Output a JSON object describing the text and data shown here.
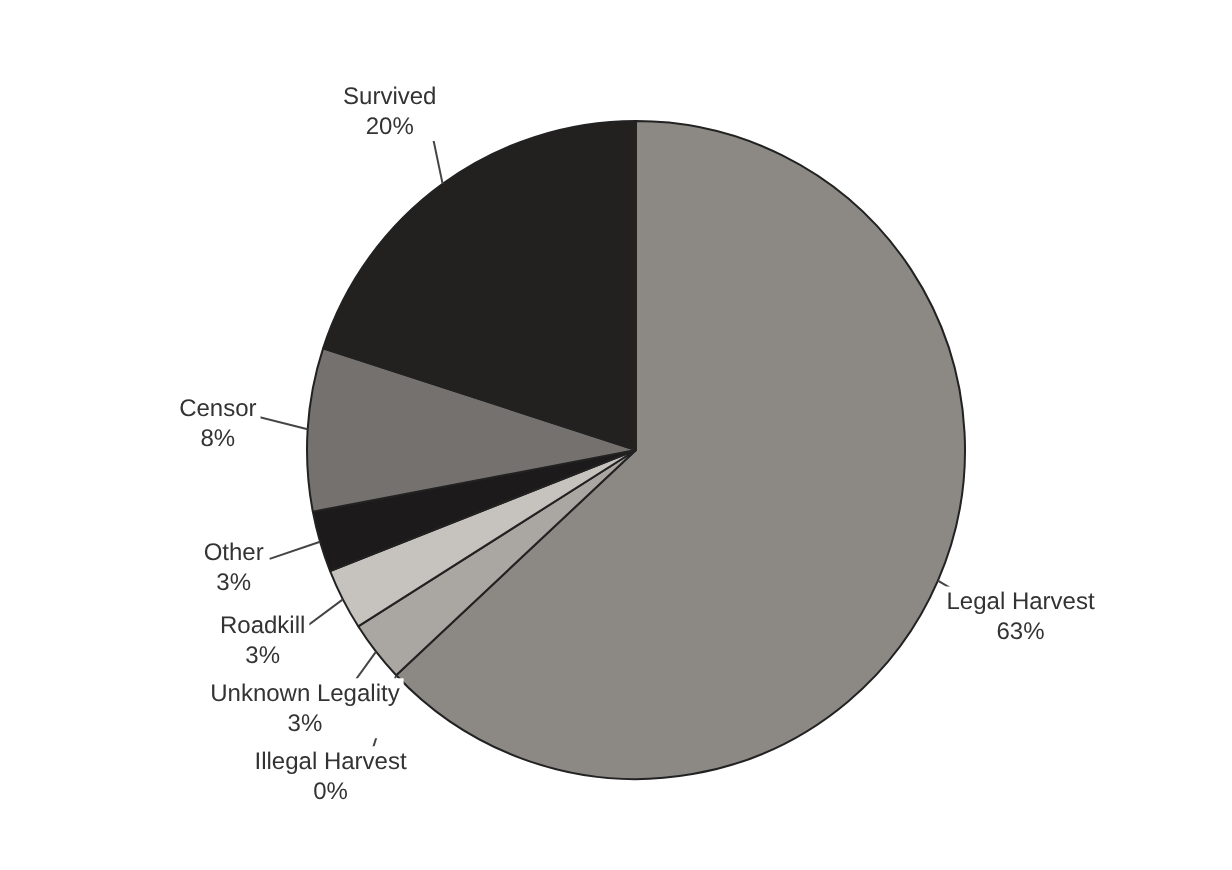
{
  "chart_data": {
    "type": "pie",
    "categories": [
      "Legal Harvest",
      "Illegal Harvest",
      "Unknown Legality",
      "Roadkill",
      "Other",
      "Censor",
      "Survived"
    ],
    "values": [
      63,
      0,
      3,
      3,
      3,
      8,
      20
    ],
    "value_labels": [
      "63%",
      "0%",
      "3%",
      "3%",
      "3%",
      "8%",
      "20%"
    ],
    "colors": [
      "#8c8884",
      "#3a3836",
      "#aaa6a2",
      "#c6c2be",
      "#1c1a1a",
      "#75716e",
      "#232020"
    ],
    "legend": false
  }
}
